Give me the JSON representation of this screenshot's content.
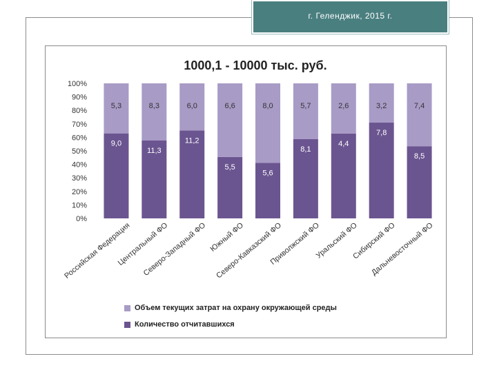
{
  "header": {
    "text": "г. Геленджик, 2015 г."
  },
  "colors": {
    "header_bg": "#4a7f80",
    "series_top": "#a89bc6",
    "series_bottom": "#6b5590"
  },
  "chart_data": {
    "type": "bar",
    "stacked": true,
    "percent_stacked": true,
    "title": "1000,1 - 10000 тыс. руб.",
    "categories": [
      "Российская Федерация",
      "Центральный ФО",
      "Северо-Западный ФО",
      "Южный ФО",
      "Северо-Кавказский ФО",
      "Приволжский ФО",
      "Уральский ФО",
      "Сибирский ФО",
      "Дальневосточный ФО"
    ],
    "series": [
      {
        "name": "Количество отчитавшихся",
        "values": [
          9.0,
          11.3,
          11.2,
          5.5,
          5.6,
          8.1,
          4.4,
          7.8,
          8.5
        ],
        "labels": [
          "9,0",
          "11,3",
          "11,2",
          "5,5",
          "5,6",
          "8,1",
          "4,4",
          "7,8",
          "8,5"
        ],
        "color": "#6b5590"
      },
      {
        "name": "Объем текущих затрат на охрану окружающей среды",
        "values": [
          5.3,
          8.3,
          6.0,
          6.6,
          8.0,
          5.7,
          2.6,
          3.2,
          7.4
        ],
        "labels": [
          "5,3",
          "8,3",
          "6,0",
          "6,6",
          "8,0",
          "5,7",
          "2,6",
          "3,2",
          "7,4"
        ],
        "color": "#a89bc6"
      }
    ],
    "yticks": [
      "0%",
      "10%",
      "20%",
      "30%",
      "40%",
      "50%",
      "60%",
      "70%",
      "80%",
      "90%",
      "100%"
    ],
    "ylim": [
      0,
      100
    ],
    "legend": [
      "Объем текущих затрат на охрану окружающей среды",
      "Количество отчитавшихся"
    ],
    "legend_position": "bottom",
    "grid": false
  }
}
